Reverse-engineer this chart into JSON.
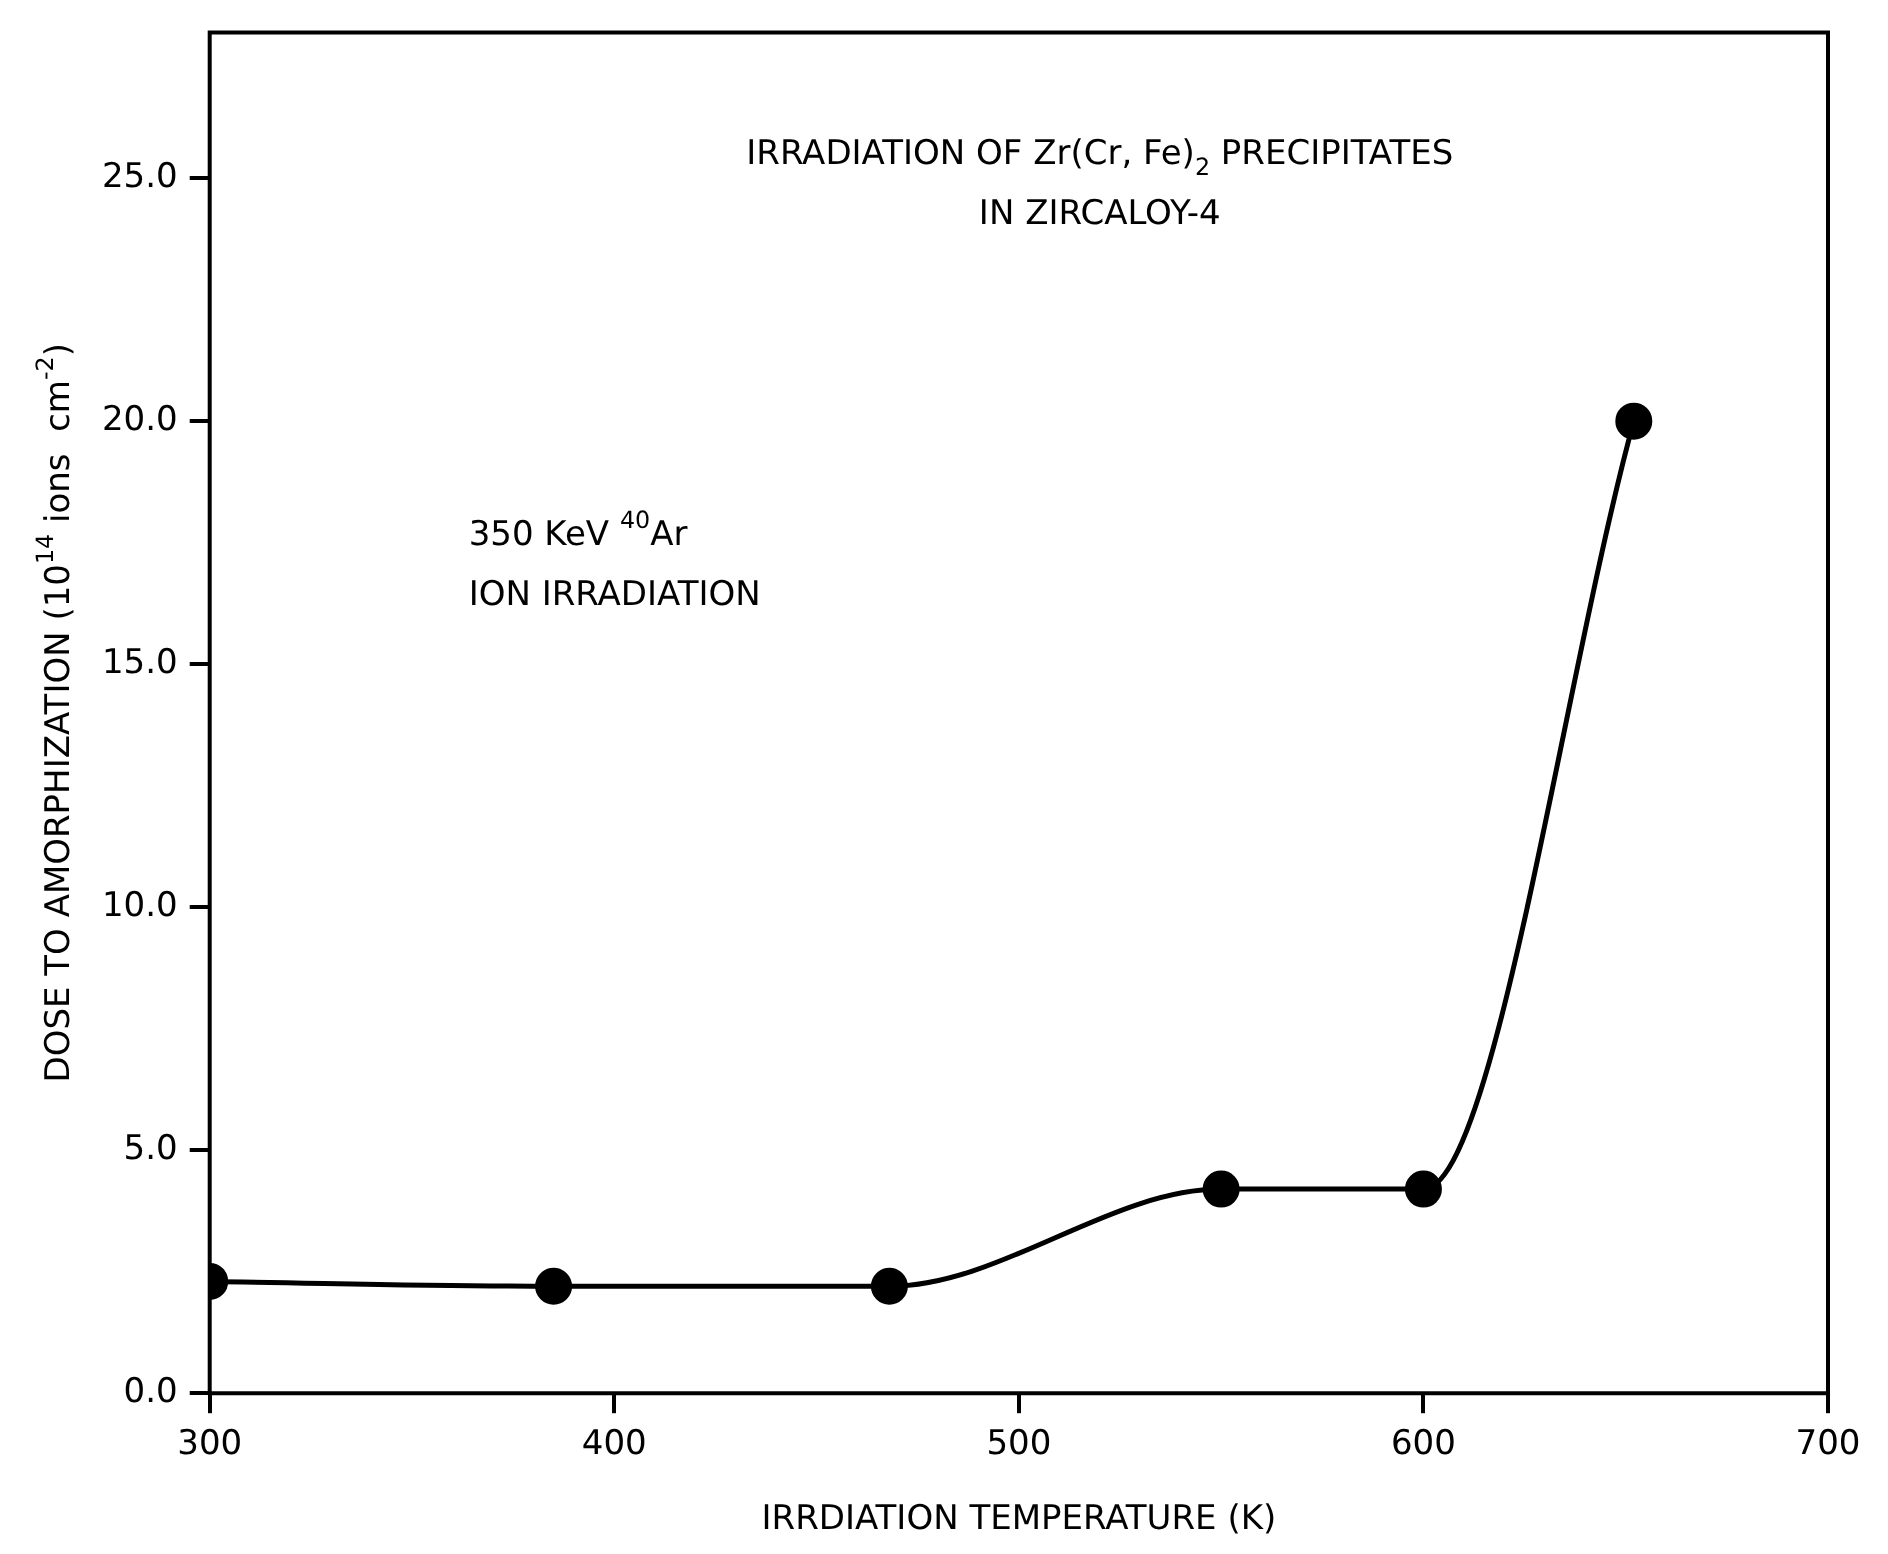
{
  "chart_data": {
    "type": "line",
    "xlabel": "IRRDIATION TEMPERATURE (K)",
    "ylabel": "DOSE TO AMORPHIZATION (10$^{14}$ ions  cm$^{-2}$)",
    "annotations": [
      "IRRADIATION OF Zr(Cr, Fe)$_{2}$ PRECIPITATES\nIN ZIRCALOY-4",
      "350 KeV $^{40}$Ar\nION IRRADIATION"
    ],
    "x": [
      300,
      385,
      468,
      550,
      600,
      652
    ],
    "series": [
      {
        "color": "#000000",
        "values": [
          2.3,
          2.2,
          2.2,
          4.2,
          4.2,
          20.0
        ]
      }
    ],
    "xlim": [
      300,
      700
    ],
    "xticks": [
      300,
      400,
      500,
      600,
      700
    ],
    "ylim": [
      0,
      28
    ],
    "yticks": [
      {
        "value": 0,
        "label": "0.0"
      },
      {
        "value": 5,
        "label": "5.0"
      },
      {
        "value": 10,
        "label": "10.0"
      },
      {
        "value": 15,
        "label": "15.0"
      },
      {
        "value": 20,
        "label": "20.0"
      },
      {
        "value": 25,
        "label": "25.0"
      }
    ],
    "grid": false,
    "legend": false,
    "marker": "circle",
    "line_style": "solid"
  }
}
